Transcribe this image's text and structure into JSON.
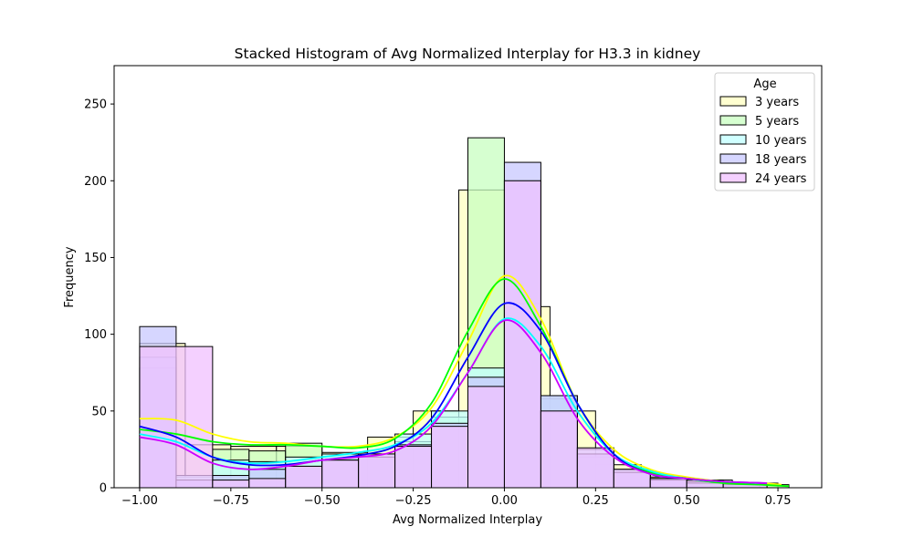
{
  "chart_data": {
    "type": "histogram",
    "title": "Stacked Histogram of Avg Normalized  Interplay for H3.3 in kidney",
    "xlabel": "Avg Normalized Interplay",
    "ylabel": "Frequency",
    "xlim": [
      -1.07,
      0.87
    ],
    "ylim": [
      0,
      275
    ],
    "xticks": [
      -1.0,
      -0.75,
      -0.5,
      -0.25,
      0.0,
      0.25,
      0.5,
      0.75
    ],
    "xtick_labels": [
      "−1.00",
      "−0.75",
      "−0.50",
      "−0.25",
      "0.00",
      "0.25",
      "0.50",
      "0.75"
    ],
    "yticks": [
      0,
      50,
      100,
      150,
      200,
      250
    ],
    "ytick_labels": [
      "0",
      "50",
      "100",
      "150",
      "200",
      "250"
    ],
    "legend": {
      "title": "Age",
      "position": "upper right"
    },
    "series": [
      {
        "name": "3 years",
        "fill": "#ffffc0",
        "line": "#ffff00",
        "bins": [
          [
            -1.0,
            -0.875,
            94
          ],
          [
            -0.875,
            -0.75,
            28
          ],
          [
            -0.75,
            -0.625,
            27
          ],
          [
            -0.625,
            -0.5,
            27
          ],
          [
            -0.5,
            -0.375,
            23
          ],
          [
            -0.375,
            -0.25,
            33
          ],
          [
            -0.25,
            -0.125,
            50
          ],
          [
            -0.125,
            0.0,
            194
          ],
          [
            0.0,
            0.125,
            118
          ],
          [
            0.125,
            0.25,
            50
          ],
          [
            0.25,
            0.375,
            15
          ],
          [
            0.375,
            0.5,
            7
          ],
          [
            0.5,
            0.625,
            5
          ],
          [
            0.625,
            0.75,
            3
          ]
        ],
        "kde": [
          [
            -1.0,
            45
          ],
          [
            -0.9,
            44
          ],
          [
            -0.8,
            35
          ],
          [
            -0.7,
            30
          ],
          [
            -0.6,
            29
          ],
          [
            -0.5,
            27
          ],
          [
            -0.4,
            27
          ],
          [
            -0.3,
            33
          ],
          [
            -0.2,
            52
          ],
          [
            -0.1,
            95
          ],
          [
            0.0,
            138
          ],
          [
            0.1,
            110
          ],
          [
            0.2,
            55
          ],
          [
            0.3,
            25
          ],
          [
            0.4,
            12
          ],
          [
            0.5,
            7
          ],
          [
            0.6,
            4
          ],
          [
            0.7,
            3
          ],
          [
            0.76,
            2
          ]
        ]
      },
      {
        "name": "5 years",
        "fill": "#c8ffc0",
        "line": "#00ff00",
        "bins": [
          [
            -1.0,
            -0.9,
            78
          ],
          [
            -0.9,
            -0.8,
            7
          ],
          [
            -0.8,
            -0.7,
            25
          ],
          [
            -0.7,
            -0.6,
            24
          ],
          [
            -0.6,
            -0.5,
            29
          ],
          [
            -0.5,
            -0.4,
            22
          ],
          [
            -0.4,
            -0.3,
            22
          ],
          [
            -0.3,
            -0.2,
            30
          ],
          [
            -0.2,
            -0.1,
            46
          ],
          [
            -0.1,
            0.0,
            228
          ],
          [
            0.0,
            0.1,
            120
          ],
          [
            0.1,
            0.2,
            58
          ],
          [
            0.2,
            0.3,
            20
          ],
          [
            0.3,
            0.4,
            10
          ],
          [
            0.4,
            0.5,
            6
          ],
          [
            0.5,
            0.6,
            4
          ],
          [
            0.6,
            0.7,
            3
          ],
          [
            0.7,
            0.78,
            2
          ]
        ],
        "kde": [
          [
            -1.0,
            38
          ],
          [
            -0.9,
            35
          ],
          [
            -0.8,
            30
          ],
          [
            -0.7,
            28
          ],
          [
            -0.6,
            28
          ],
          [
            -0.5,
            27
          ],
          [
            -0.4,
            26
          ],
          [
            -0.3,
            32
          ],
          [
            -0.2,
            55
          ],
          [
            -0.1,
            102
          ],
          [
            0.0,
            136
          ],
          [
            0.1,
            105
          ],
          [
            0.2,
            55
          ],
          [
            0.3,
            22
          ],
          [
            0.4,
            10
          ],
          [
            0.5,
            6
          ],
          [
            0.6,
            3
          ],
          [
            0.7,
            2
          ],
          [
            0.78,
            1
          ]
        ]
      },
      {
        "name": "10 years",
        "fill": "#c0ffff",
        "line": "#00ffff",
        "bins": [
          [
            -1.0,
            -0.9,
            85
          ],
          [
            -0.9,
            -0.8,
            8
          ],
          [
            -0.8,
            -0.7,
            18
          ],
          [
            -0.7,
            -0.6,
            17
          ],
          [
            -0.6,
            -0.5,
            20
          ],
          [
            -0.5,
            -0.4,
            22
          ],
          [
            -0.4,
            -0.3,
            22
          ],
          [
            -0.3,
            -0.2,
            35
          ],
          [
            -0.2,
            -0.1,
            50
          ],
          [
            -0.1,
            0.0,
            78
          ],
          [
            0.0,
            0.1,
            200
          ],
          [
            0.1,
            0.2,
            60
          ],
          [
            0.2,
            0.3,
            25
          ],
          [
            0.3,
            0.4,
            12
          ],
          [
            0.4,
            0.5,
            6
          ],
          [
            0.5,
            0.6,
            4
          ],
          [
            0.6,
            0.7,
            3
          ]
        ],
        "kde": [
          [
            -1.0,
            35
          ],
          [
            -0.9,
            30
          ],
          [
            -0.8,
            20
          ],
          [
            -0.7,
            16
          ],
          [
            -0.6,
            17
          ],
          [
            -0.5,
            20
          ],
          [
            -0.4,
            23
          ],
          [
            -0.3,
            28
          ],
          [
            -0.2,
            42
          ],
          [
            -0.1,
            75
          ],
          [
            0.0,
            110
          ],
          [
            0.1,
            92
          ],
          [
            0.2,
            50
          ],
          [
            0.3,
            22
          ],
          [
            0.4,
            11
          ],
          [
            0.5,
            6
          ],
          [
            0.6,
            4
          ],
          [
            0.7,
            3
          ]
        ]
      },
      {
        "name": "18 years",
        "fill": "#c8c8ff",
        "line": "#0000ff",
        "bins": [
          [
            -1.0,
            -0.9,
            105
          ],
          [
            -0.9,
            -0.8,
            5
          ],
          [
            -0.8,
            -0.7,
            8
          ],
          [
            -0.7,
            -0.6,
            12
          ],
          [
            -0.6,
            -0.5,
            14
          ],
          [
            -0.5,
            -0.4,
            18
          ],
          [
            -0.4,
            -0.3,
            20
          ],
          [
            -0.3,
            -0.2,
            28
          ],
          [
            -0.2,
            -0.1,
            42
          ],
          [
            -0.1,
            0.0,
            72
          ],
          [
            0.0,
            0.1,
            212
          ],
          [
            0.1,
            0.2,
            60
          ],
          [
            0.2,
            0.3,
            22
          ],
          [
            0.3,
            0.4,
            10
          ],
          [
            0.4,
            0.5,
            5
          ],
          [
            0.5,
            0.6,
            3
          ],
          [
            0.6,
            0.72,
            2
          ]
        ],
        "kde": [
          [
            -1.0,
            40
          ],
          [
            -0.9,
            33
          ],
          [
            -0.8,
            20
          ],
          [
            -0.7,
            15
          ],
          [
            -0.6,
            15
          ],
          [
            -0.5,
            18
          ],
          [
            -0.4,
            21
          ],
          [
            -0.3,
            27
          ],
          [
            -0.2,
            45
          ],
          [
            -0.1,
            85
          ],
          [
            0.0,
            120
          ],
          [
            0.1,
            102
          ],
          [
            0.2,
            55
          ],
          [
            0.3,
            22
          ],
          [
            0.4,
            9
          ],
          [
            0.5,
            6
          ],
          [
            0.6,
            4
          ],
          [
            0.72,
            3
          ]
        ]
      },
      {
        "name": "24 years",
        "fill": "#f0c0ff",
        "line": "#cc00ff",
        "bins": [
          [
            -1.0,
            -0.8,
            92
          ],
          [
            -0.8,
            -0.7,
            5
          ],
          [
            -0.7,
            -0.6,
            6
          ],
          [
            -0.6,
            -0.5,
            14
          ],
          [
            -0.5,
            -0.4,
            18
          ],
          [
            -0.4,
            -0.3,
            22
          ],
          [
            -0.3,
            -0.2,
            27
          ],
          [
            -0.2,
            -0.1,
            40
          ],
          [
            -0.1,
            0.0,
            66
          ],
          [
            0.0,
            0.1,
            200
          ],
          [
            0.1,
            0.2,
            50
          ],
          [
            0.2,
            0.3,
            26
          ],
          [
            0.3,
            0.4,
            12
          ],
          [
            0.4,
            0.5,
            6
          ],
          [
            0.5,
            0.6,
            5
          ],
          [
            0.6,
            0.72,
            3
          ]
        ],
        "kde": [
          [
            -1.0,
            33
          ],
          [
            -0.9,
            28
          ],
          [
            -0.8,
            16
          ],
          [
            -0.7,
            12
          ],
          [
            -0.6,
            14
          ],
          [
            -0.5,
            18
          ],
          [
            -0.4,
            20
          ],
          [
            -0.3,
            24
          ],
          [
            -0.2,
            40
          ],
          [
            -0.1,
            75
          ],
          [
            0.0,
            109
          ],
          [
            0.1,
            88
          ],
          [
            0.2,
            45
          ],
          [
            0.3,
            20
          ],
          [
            0.4,
            9
          ],
          [
            0.5,
            6
          ],
          [
            0.6,
            4
          ],
          [
            0.72,
            3
          ]
        ]
      }
    ]
  }
}
